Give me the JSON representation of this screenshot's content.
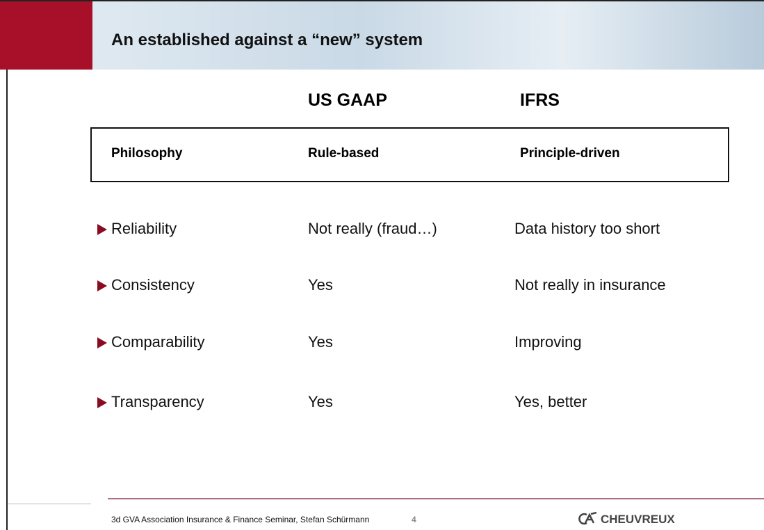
{
  "header": {
    "title": "An established against a “new” system"
  },
  "columns": [
    "US GAAP",
    "IFRS"
  ],
  "philosophy": [
    "Philosophy",
    "Rule-based",
    "Principle-driven"
  ],
  "rows": [
    [
      "Reliability",
      "Not really (fraud…)",
      "Data history too short"
    ],
    [
      "Consistency",
      "Yes",
      "Not really in insurance"
    ],
    [
      "Comparability",
      "Yes",
      "Improving"
    ],
    [
      "Transparency",
      "Yes",
      "Yes, better"
    ]
  ],
  "footer": {
    "text": "3d GVA Association Insurance & Finance Seminar, Stefan Schürmann",
    "page": "4",
    "logo": "CHEUVREUX"
  }
}
